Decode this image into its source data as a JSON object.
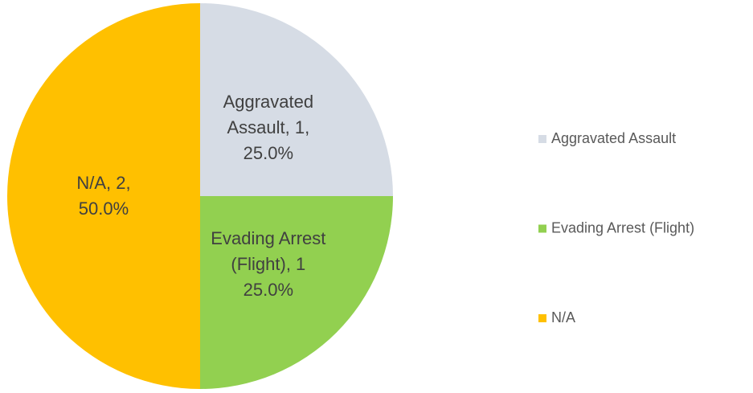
{
  "chart_data": {
    "type": "pie",
    "categories": [
      "Aggravated Assault",
      "Evading Arrest (Flight)",
      "N/A"
    ],
    "values": [
      1,
      1,
      2
    ],
    "value_labels": [
      "Aggravated\nAssault, 1,\n25.0%",
      "Evading Arrest\n(Flight), 1\n25.0%",
      "N/A, 2,\n50.0%"
    ],
    "colors": [
      "#d6dce5",
      "#92d050",
      "#ffc000"
    ],
    "legend": "right"
  }
}
